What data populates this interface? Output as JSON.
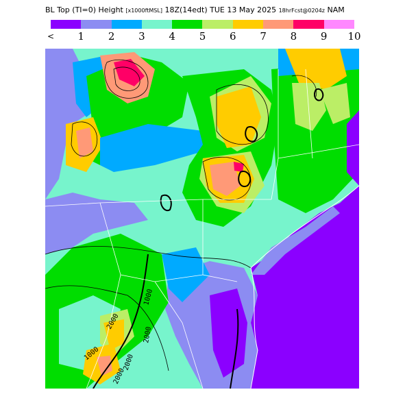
{
  "title": {
    "field": "BL Top (TI=0) Height",
    "units": "[x1000ftMSL]",
    "valid": "18Z(14edt) TUE 13 May 2025",
    "forecast": "18hrFcst@0204z",
    "model": "NAM"
  },
  "legend": {
    "colors": [
      "#8b00ff",
      "#8c8cf2",
      "#00aaff",
      "#77f4cc",
      "#00dd00",
      "#bbee66",
      "#ffcc00",
      "#ff9977",
      "#ff0066",
      "#ff88ff"
    ],
    "labels": [
      "<",
      "1",
      "2",
      "3",
      "4",
      "5",
      "6",
      "7",
      "8",
      "9",
      "10"
    ]
  },
  "map": {
    "contour_labels": [
      "1000",
      "2000",
      "2000",
      "2000",
      "1000",
      "2000"
    ]
  }
}
